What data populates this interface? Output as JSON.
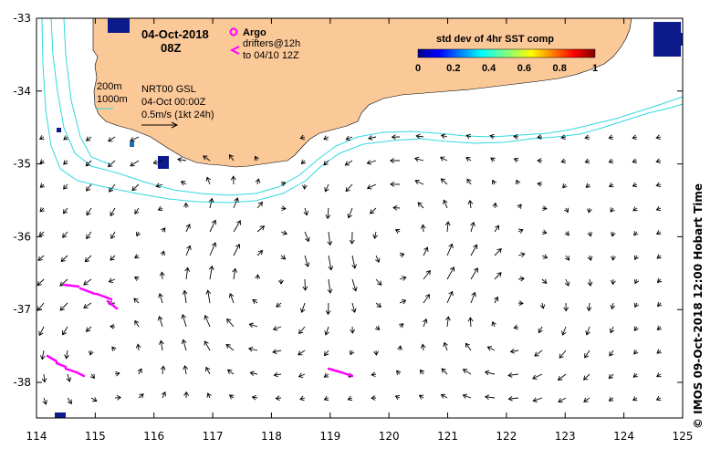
{
  "map": {
    "date": "04-Oct-2018",
    "time": "08Z",
    "legend_argo": "Argo",
    "legend_drifters_1": "drifters@12h",
    "legend_drifters_2": "to 04/10 12Z",
    "contour_200": "200m",
    "contour_1000": "1000m",
    "product": "NRT00 GSL",
    "product_date": "04-Oct 00:00Z",
    "scale_label": "0.5m/s (1kt 24h)",
    "colorbar_title": "std dev of 4hr SST comp",
    "colorbar_ticks": [
      "0",
      "0.2",
      "0.4",
      "0.6",
      "0.8",
      "1"
    ],
    "lon_ticks": [
      "114",
      "115",
      "116",
      "117",
      "118",
      "119",
      "120",
      "121",
      "122",
      "123",
      "124",
      "125"
    ],
    "lat_ticks": [
      "-33",
      "-34",
      "-35",
      "-36",
      "-37",
      "-38"
    ],
    "credit": "© IMOS 09-Oct-2018 12:00 Hobart Time",
    "colors": {
      "land": "#fbc898",
      "contour": "#30d8e0",
      "drifters": "#ff00ff",
      "sst_patch": "#0d1a8c"
    }
  }
}
